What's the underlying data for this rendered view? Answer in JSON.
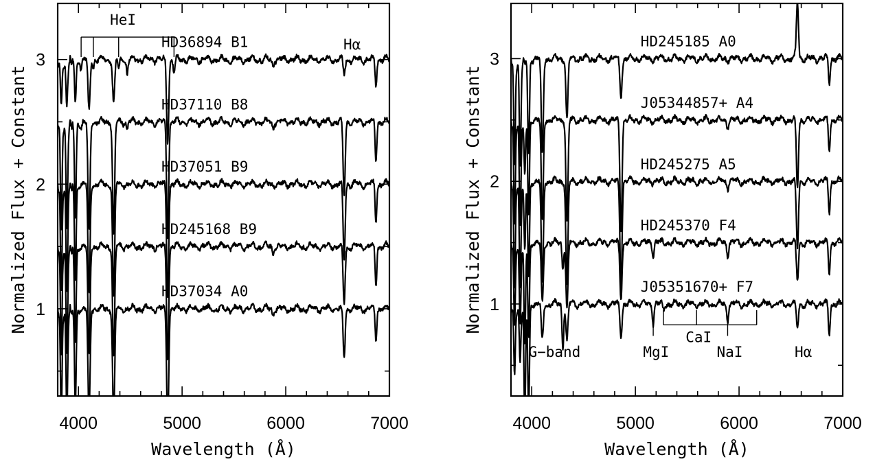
{
  "chart_data": [
    {
      "type": "line",
      "xlabel": "Wavelength (Å)",
      "ylabel": "Normalized Flux + Constant",
      "xlim": [
        3800,
        7000
      ],
      "ylim": [
        0.3,
        3.45
      ],
      "xticks": [
        4000,
        5000,
        6000,
        7000
      ],
      "xtick_labels": [
        "4000",
        "5000",
        "6000",
        "7000"
      ],
      "yticks": [
        1,
        2,
        3
      ],
      "ytick_labels": [
        "1",
        "2",
        "3"
      ],
      "grid": false,
      "legend": "none",
      "series": [
        {
          "name": "HD36894  B1",
          "offset": 3.0,
          "features": [
            [
              3835,
              0.3
            ],
            [
              3889,
              0.3
            ],
            [
              3970,
              0.35
            ],
            [
              4026,
              0.08
            ],
            [
              4102,
              0.42
            ],
            [
              4144,
              0.06
            ],
            [
              4340,
              0.36
            ],
            [
              4388,
              0.08
            ],
            [
              4471,
              0.12
            ],
            [
              4861,
              0.66
            ],
            [
              4922,
              0.1
            ],
            [
              5876,
              0.05
            ],
            [
              6563,
              0.12
            ],
            [
              6870,
              0.2
            ]
          ]
        },
        {
          "name": "HD37110  B8",
          "offset": 2.5,
          "features": [
            [
              3835,
              0.8
            ],
            [
              3889,
              0.8
            ],
            [
              3970,
              0.8
            ],
            [
              4026,
              0.05
            ],
            [
              4102,
              0.9
            ],
            [
              4340,
              0.9
            ],
            [
              4471,
              0.05
            ],
            [
              4861,
              0.9
            ],
            [
              5876,
              0.05
            ],
            [
              6563,
              0.6
            ],
            [
              6870,
              0.3
            ]
          ]
        },
        {
          "name": "HD37051  B9",
          "offset": 2.0,
          "features": [
            [
              3835,
              0.8
            ],
            [
              3889,
              0.8
            ],
            [
              3970,
              0.8
            ],
            [
              4102,
              0.9
            ],
            [
              4340,
              0.9
            ],
            [
              4861,
              0.9
            ],
            [
              6563,
              0.6
            ],
            [
              6870,
              0.3
            ]
          ]
        },
        {
          "name": "HD245168  B9",
          "offset": 1.5,
          "features": [
            [
              3835,
              0.8
            ],
            [
              3889,
              0.8
            ],
            [
              3970,
              0.8
            ],
            [
              4102,
              0.9
            ],
            [
              4340,
              0.9
            ],
            [
              4861,
              0.9
            ],
            [
              5876,
              0.05
            ],
            [
              6563,
              0.45
            ],
            [
              6870,
              0.3
            ]
          ]
        },
        {
          "name": "HD37034  A0",
          "offset": 1.0,
          "features": [
            [
              3835,
              0.8
            ],
            [
              3889,
              0.8
            ],
            [
              3970,
              0.8
            ],
            [
              4102,
              0.88
            ],
            [
              4340,
              0.9
            ],
            [
              4861,
              0.92
            ],
            [
              5876,
              0.04
            ],
            [
              6563,
              0.38
            ],
            [
              6870,
              0.25
            ]
          ]
        }
      ],
      "annotations": [
        {
          "text": "HeI",
          "x": 4430,
          "y": 3.28
        },
        {
          "text": "Hα",
          "x": 6640,
          "y": 3.08
        }
      ],
      "brackets": [
        {
          "x_start": 4026,
          "x_end": 4922,
          "y": 3.18,
          "ticks": [
            4026,
            4144,
            4388,
            4922
          ],
          "tick_bottom": 3.02
        }
      ]
    },
    {
      "type": "line",
      "xlabel": "Wavelength (Å)",
      "ylabel": "Normalized Flux + Constant",
      "xlim": [
        3800,
        7000
      ],
      "ylim": [
        0.25,
        3.45
      ],
      "xticks": [
        4000,
        5000,
        6000,
        7000
      ],
      "xtick_labels": [
        "4000",
        "5000",
        "6000",
        "7000"
      ],
      "yticks": [
        1,
        2,
        3
      ],
      "ytick_labels": [
        "1",
        "2",
        "3"
      ],
      "grid": false,
      "legend": "none",
      "series": [
        {
          "name": "HD245185  A0",
          "offset": 3.0,
          "features": [
            [
              3835,
              0.8
            ],
            [
              3889,
              0.8
            ],
            [
              3970,
              0.8
            ],
            [
              4102,
              0.8
            ],
            [
              4340,
              0.5
            ],
            [
              4861,
              0.3
            ],
            [
              6563,
              -0.45
            ],
            [
              6870,
              0.2
            ]
          ]
        },
        {
          "name": "J05344857+  A4",
          "offset": 2.5,
          "features": [
            [
              3835,
              0.8
            ],
            [
              3889,
              0.8
            ],
            [
              3933,
              0.4
            ],
            [
              3970,
              0.8
            ],
            [
              4102,
              0.85
            ],
            [
              4340,
              0.85
            ],
            [
              4861,
              0.9
            ],
            [
              5890,
              0.05
            ],
            [
              6563,
              0.55
            ],
            [
              6870,
              0.25
            ]
          ]
        },
        {
          "name": "HD245275  A5",
          "offset": 2.0,
          "features": [
            [
              3835,
              0.8
            ],
            [
              3889,
              0.8
            ],
            [
              3933,
              0.5
            ],
            [
              3970,
              0.8
            ],
            [
              4102,
              0.85
            ],
            [
              4340,
              0.85
            ],
            [
              4861,
              0.85
            ],
            [
              5890,
              0.05
            ],
            [
              6563,
              0.55
            ],
            [
              6870,
              0.25
            ]
          ]
        },
        {
          "name": "HD245370  F4",
          "offset": 1.5,
          "features": [
            [
              3835,
              0.6
            ],
            [
              3889,
              0.6
            ],
            [
              3933,
              0.8
            ],
            [
              3970,
              0.8
            ],
            [
              4102,
              0.5
            ],
            [
              4300,
              0.2
            ],
            [
              4340,
              0.55
            ],
            [
              4861,
              0.45
            ],
            [
              5172,
              0.1
            ],
            [
              5890,
              0.1
            ],
            [
              6563,
              0.3
            ],
            [
              6870,
              0.25
            ]
          ]
        },
        {
          "name": "J05351670+  F7",
          "offset": 1.0,
          "features": [
            [
              3835,
              0.5
            ],
            [
              3889,
              0.4
            ],
            [
              3933,
              0.9
            ],
            [
              3970,
              0.9
            ],
            [
              4102,
              0.3
            ],
            [
              4300,
              0.35
            ],
            [
              4340,
              0.3
            ],
            [
              4861,
              0.25
            ],
            [
              5172,
              0.15
            ],
            [
              5270,
              0.05
            ],
            [
              5890,
              0.12
            ],
            [
              6563,
              0.2
            ],
            [
              6870,
              0.25
            ]
          ]
        }
      ],
      "annotations": [
        {
          "text": "G−band",
          "x": 4220,
          "y": 0.57
        },
        {
          "text": "MgI",
          "x": 5200,
          "y": 0.57
        },
        {
          "text": "CaI",
          "x": 5610,
          "y": 0.69
        },
        {
          "text": "NaI",
          "x": 5910,
          "y": 0.57
        },
        {
          "text": "Hα",
          "x": 6620,
          "y": 0.57
        }
      ],
      "brackets": [
        {
          "x_start": 5270,
          "x_end": 6170,
          "y": 0.83,
          "ticks": [
            5270,
            5590,
            6170
          ],
          "tick_bottom": 0.95
        }
      ],
      "markers": [
        {
          "x": 5172,
          "y_top": 0.86,
          "y_bottom": 0.74
        },
        {
          "x": 5890,
          "y_top": 0.86,
          "y_bottom": 0.74
        }
      ]
    }
  ]
}
